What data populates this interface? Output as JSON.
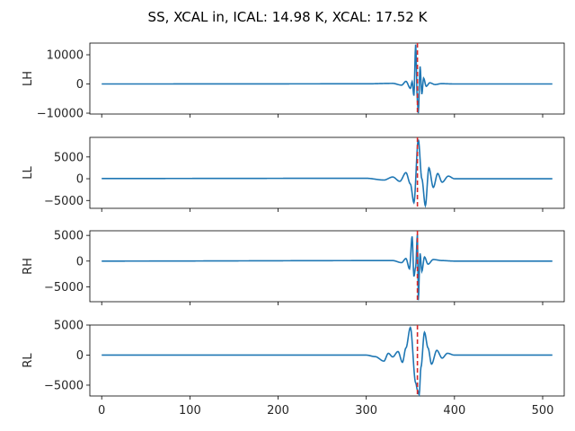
{
  "chart_data": {
    "type": "line",
    "title": "SS, XCAL in, ICAL: 14.98 K, XCAL: 17.52 K",
    "x_range": [
      0,
      511
    ],
    "x_ticks": [
      0,
      100,
      200,
      300,
      400,
      500
    ],
    "marker_x": 358,
    "colors": {
      "series": "#1f77b4",
      "marker": "#d62728"
    },
    "panels": [
      {
        "ylabel": "LH",
        "ylim": [
          -10300,
          14000
        ],
        "y_ticks": [
          -10000,
          0,
          10000
        ],
        "y_tick_labels": [
          "−10000",
          "0",
          "10000"
        ],
        "baseline": 0,
        "key_points": [
          [
            0,
            0
          ],
          [
            300,
            50
          ],
          [
            330,
            200
          ],
          [
            340,
            -400
          ],
          [
            345,
            900
          ],
          [
            350,
            -1500
          ],
          [
            352,
            800
          ],
          [
            354,
            -4000
          ],
          [
            356,
            13500
          ],
          [
            358,
            -6000
          ],
          [
            359,
            -10000
          ],
          [
            361,
            6000
          ],
          [
            363,
            -3500
          ],
          [
            365,
            2000
          ],
          [
            368,
            -800
          ],
          [
            372,
            400
          ],
          [
            378,
            -200
          ],
          [
            385,
            100
          ],
          [
            400,
            0
          ],
          [
            511,
            0
          ]
        ]
      },
      {
        "ylabel": "LL",
        "ylim": [
          -6800,
          9500
        ],
        "y_ticks": [
          -5000,
          0,
          5000
        ],
        "y_tick_labels": [
          "−5000",
          "0",
          "5000"
        ],
        "baseline": 0,
        "key_points": [
          [
            0,
            50
          ],
          [
            300,
            100
          ],
          [
            320,
            -300
          ],
          [
            330,
            400
          ],
          [
            338,
            -600
          ],
          [
            345,
            1400
          ],
          [
            350,
            -1200
          ],
          [
            354,
            -5500
          ],
          [
            359,
            9000
          ],
          [
            363,
            0
          ],
          [
            367,
            -6200
          ],
          [
            371,
            2500
          ],
          [
            376,
            -2000
          ],
          [
            381,
            1200
          ],
          [
            386,
            -800
          ],
          [
            393,
            600
          ],
          [
            400,
            0
          ],
          [
            511,
            0
          ]
        ]
      },
      {
        "ylabel": "RH",
        "ylim": [
          -7900,
          5900
        ],
        "y_ticks": [
          -5000,
          0,
          5000
        ],
        "y_tick_labels": [
          "−5000",
          "0",
          "5000"
        ],
        "baseline": 0,
        "key_points": [
          [
            0,
            0
          ],
          [
            330,
            100
          ],
          [
            340,
            -300
          ],
          [
            345,
            500
          ],
          [
            349,
            -1500
          ],
          [
            352,
            4800
          ],
          [
            354,
            -3000
          ],
          [
            356,
            -1200
          ],
          [
            358,
            5200
          ],
          [
            359,
            -7600
          ],
          [
            361,
            1500
          ],
          [
            363,
            -2000
          ],
          [
            366,
            800
          ],
          [
            370,
            -600
          ],
          [
            376,
            300
          ],
          [
            386,
            100
          ],
          [
            400,
            0
          ],
          [
            511,
            0
          ]
        ]
      },
      {
        "ylabel": "RL",
        "ylim": [
          -6800,
          5000
        ],
        "y_ticks": [
          -5000,
          0,
          5000
        ],
        "y_tick_labels": [
          "−5000",
          "0",
          "5000"
        ],
        "baseline": 0,
        "key_points": [
          [
            0,
            0
          ],
          [
            300,
            0
          ],
          [
            310,
            -250
          ],
          [
            320,
            -1000
          ],
          [
            325,
            300
          ],
          [
            330,
            -300
          ],
          [
            336,
            600
          ],
          [
            341,
            -1200
          ],
          [
            345,
            1200
          ],
          [
            350,
            4600
          ],
          [
            356,
            -4600
          ],
          [
            358,
            -5800
          ],
          [
            360,
            -6600
          ],
          [
            362,
            -2000
          ],
          [
            366,
            3800
          ],
          [
            370,
            1200
          ],
          [
            374,
            -1500
          ],
          [
            380,
            800
          ],
          [
            386,
            -500
          ],
          [
            392,
            300
          ],
          [
            400,
            0
          ],
          [
            511,
            0
          ]
        ]
      }
    ]
  }
}
